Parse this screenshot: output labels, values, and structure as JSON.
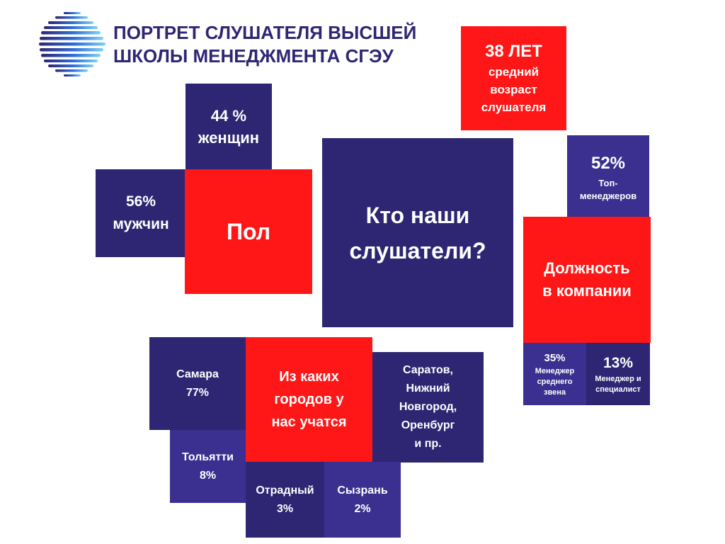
{
  "header": {
    "title_line1": "ПОРТРЕТ СЛУШАТЕЛЯ ВЫСШЕЙ",
    "title_line2": "ШКОЛЫ МЕНЕДЖМЕНТА СГЭУ",
    "logo_icon": "globe-stripes-logo"
  },
  "age": {
    "value": "38 ЛЕТ",
    "line1": "средний",
    "line2": "возраст",
    "line3": "слушателя"
  },
  "gender": {
    "label": "Пол",
    "women_pct": "44 %",
    "women_label": "женщин",
    "men_pct": "56%",
    "men_label": "мужчин"
  },
  "center": {
    "line1": "Кто наши",
    "line2": "слушатели?"
  },
  "position": {
    "line1": "Должность",
    "line2": "в компании",
    "top_pct": "52%",
    "top_line1": "Топ-",
    "top_line2": "менеджеров",
    "mid_pct": "35%",
    "mid_line1": "Менеджер",
    "mid_line2": "среднего",
    "mid_line3": "звена",
    "spec_pct": "13%",
    "spec_line1": "Менеджер и",
    "spec_line2": "специалист"
  },
  "cities": {
    "line1": "Из каких",
    "line2": "городов у",
    "line3": "нас учатся",
    "samara_name": "Самара",
    "samara_pct": "77%",
    "others_line1": "Саратов,",
    "others_line2": "Нижний",
    "others_line3": "Новгород,",
    "others_line4": "Оренбург",
    "others_line5": "и пр.",
    "tol_name": "Тольятти",
    "tol_pct": "8%",
    "otr_name": "Отрадный",
    "otr_pct": "3%",
    "syz_name": "Сызрань",
    "syz_pct": "2%"
  },
  "colors": {
    "navy": "#2e2672",
    "violet": "#3b2f8f",
    "red": "#ff1616"
  }
}
